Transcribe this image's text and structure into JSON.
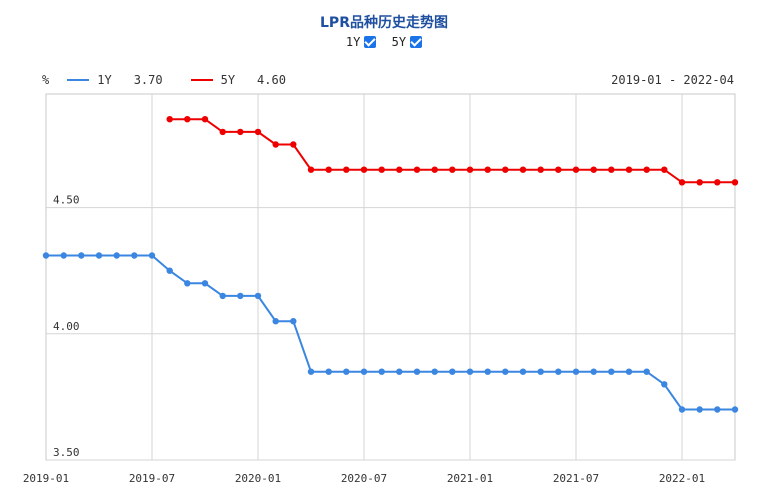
{
  "title": "LPR品种历史走势图",
  "toggles": [
    {
      "label": "1Y",
      "checked": true
    },
    {
      "label": "5Y",
      "checked": true
    }
  ],
  "legend": {
    "unit": "%",
    "items": [
      {
        "name": "1Y",
        "value": "3.70",
        "color": "#3a86e0"
      },
      {
        "name": "5Y",
        "value": "4.60",
        "color": "#ee0000"
      }
    ]
  },
  "date_range": "2019-01 - 2022-04",
  "chart_data": {
    "type": "line",
    "title": "LPR品种历史走势图",
    "xlabel": "",
    "ylabel": "%",
    "x_range": [
      "2019-01",
      "2022-04"
    ],
    "ylim": [
      3.5,
      4.95
    ],
    "y_ticks": [
      "4.50",
      "4.00",
      "3.50"
    ],
    "x_ticks": [
      "2019-01",
      "2019-07",
      "2020-01",
      "2020-07",
      "2021-01",
      "2021-07",
      "2022-01"
    ],
    "grid": true,
    "legend_position": "top-left",
    "series": [
      {
        "name": "1Y",
        "color": "#3a86e0",
        "x": [
          "2019-01",
          "2019-02",
          "2019-03",
          "2019-04",
          "2019-05",
          "2019-06",
          "2019-07",
          "2019-08",
          "2019-09",
          "2019-10",
          "2019-11",
          "2019-12",
          "2020-01",
          "2020-02",
          "2020-03",
          "2020-04",
          "2020-05",
          "2020-06",
          "2020-07",
          "2020-08",
          "2020-09",
          "2020-10",
          "2020-11",
          "2020-12",
          "2021-01",
          "2021-02",
          "2021-03",
          "2021-04",
          "2021-05",
          "2021-06",
          "2021-07",
          "2021-08",
          "2021-09",
          "2021-10",
          "2021-11",
          "2021-12",
          "2022-01",
          "2022-02",
          "2022-03",
          "2022-04"
        ],
        "values": [
          4.31,
          4.31,
          4.31,
          4.31,
          4.31,
          4.31,
          4.31,
          4.25,
          4.2,
          4.2,
          4.15,
          4.15,
          4.15,
          4.05,
          4.05,
          3.85,
          3.85,
          3.85,
          3.85,
          3.85,
          3.85,
          3.85,
          3.85,
          3.85,
          3.85,
          3.85,
          3.85,
          3.85,
          3.85,
          3.85,
          3.85,
          3.85,
          3.85,
          3.85,
          3.85,
          3.8,
          3.7,
          3.7,
          3.7,
          3.7
        ]
      },
      {
        "name": "5Y",
        "color": "#ee0000",
        "x": [
          "2019-08",
          "2019-09",
          "2019-10",
          "2019-11",
          "2019-12",
          "2020-01",
          "2020-02",
          "2020-03",
          "2020-04",
          "2020-05",
          "2020-06",
          "2020-07",
          "2020-08",
          "2020-09",
          "2020-10",
          "2020-11",
          "2020-12",
          "2021-01",
          "2021-02",
          "2021-03",
          "2021-04",
          "2021-05",
          "2021-06",
          "2021-07",
          "2021-08",
          "2021-09",
          "2021-10",
          "2021-11",
          "2021-12",
          "2022-01",
          "2022-02",
          "2022-03",
          "2022-04"
        ],
        "values": [
          4.85,
          4.85,
          4.85,
          4.8,
          4.8,
          4.8,
          4.75,
          4.75,
          4.65,
          4.65,
          4.65,
          4.65,
          4.65,
          4.65,
          4.65,
          4.65,
          4.65,
          4.65,
          4.65,
          4.65,
          4.65,
          4.65,
          4.65,
          4.65,
          4.65,
          4.65,
          4.65,
          4.65,
          4.65,
          4.6,
          4.6,
          4.6,
          4.6
        ]
      }
    ]
  }
}
